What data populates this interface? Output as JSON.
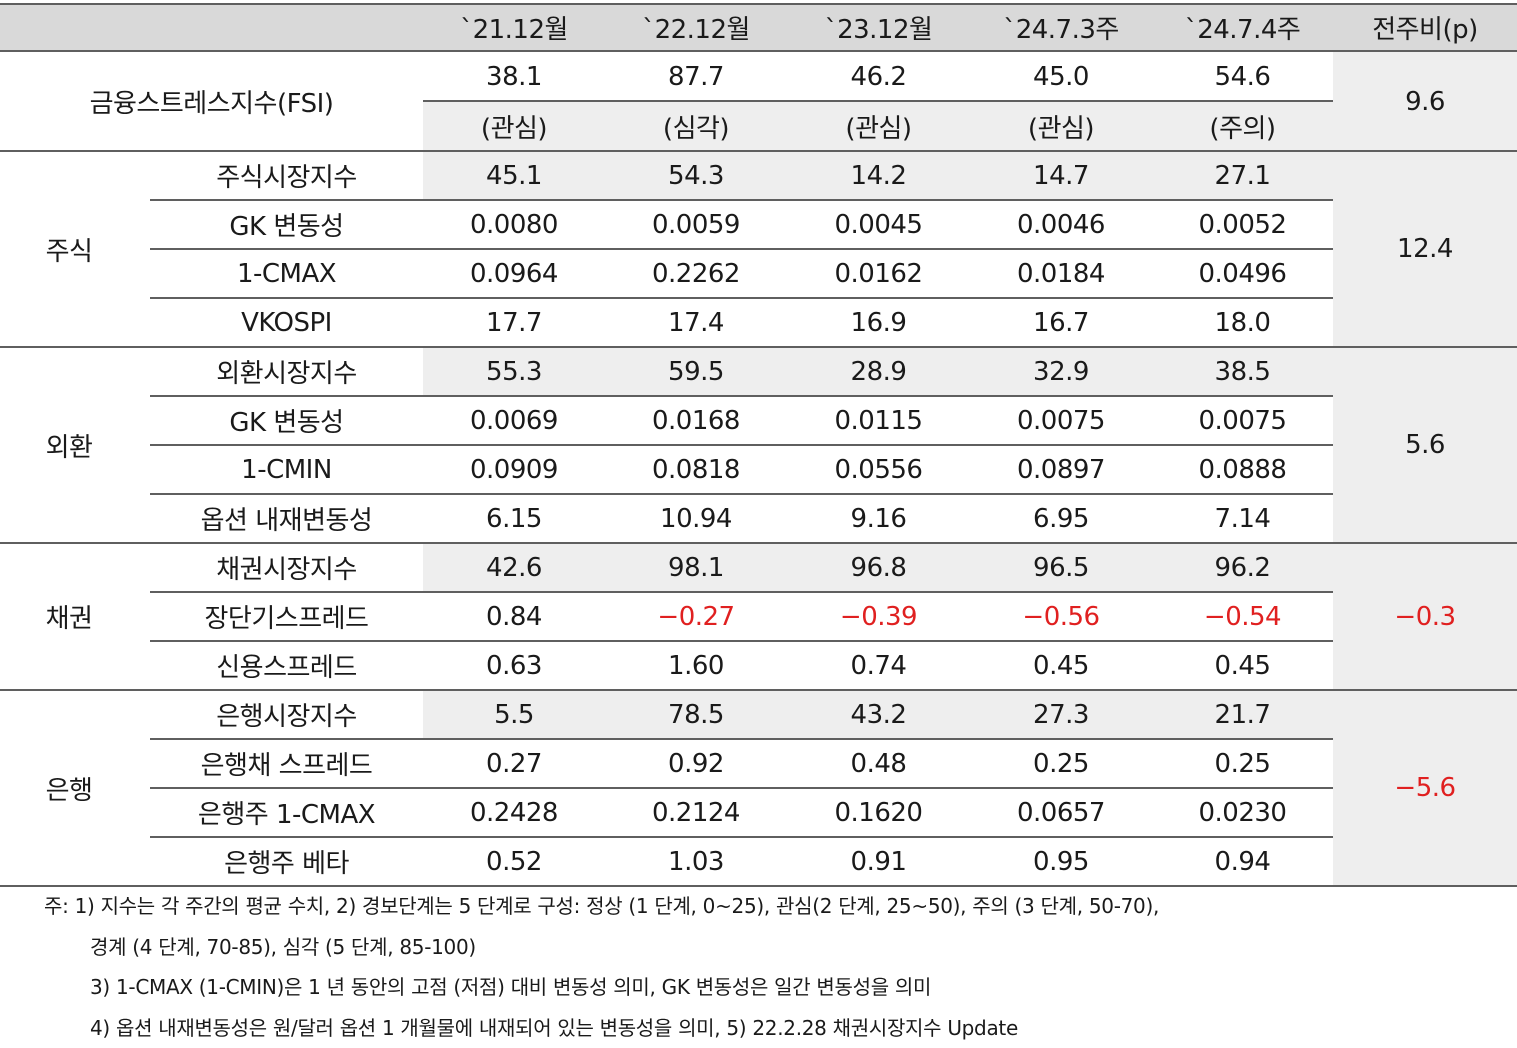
{
  "table": {
    "headers": [
      "`21.12월",
      "`22.12월",
      "`23.12월",
      "`24.7.3주",
      "`24.7.4주",
      "전주비(p)"
    ],
    "fsi": {
      "label": "금융스트레스지수(FSI)",
      "values": [
        "38.1",
        "87.7",
        "46.2",
        "45.0",
        "54.6"
      ],
      "levels": [
        "(관심)",
        "(심각)",
        "(관심)",
        "(관심)",
        "(주의)"
      ],
      "change": "9.6"
    },
    "groups": [
      {
        "name": "주식",
        "change": "12.4",
        "rows": [
          {
            "label": "주식시장지수",
            "values": [
              "45.1",
              "54.3",
              "14.2",
              "14.7",
              "27.1"
            ]
          },
          {
            "label": "GK 변동성",
            "values": [
              "0.0080",
              "0.0059",
              "0.0045",
              "0.0046",
              "0.0052"
            ]
          },
          {
            "label": "1-CMAX",
            "values": [
              "0.0964",
              "0.2262",
              "0.0162",
              "0.0184",
              "0.0496"
            ]
          },
          {
            "label": "VKOSPI",
            "values": [
              "17.7",
              "17.4",
              "16.9",
              "16.7",
              "18.0"
            ]
          }
        ]
      },
      {
        "name": "외환",
        "change": "5.6",
        "rows": [
          {
            "label": "외환시장지수",
            "values": [
              "55.3",
              "59.5",
              "28.9",
              "32.9",
              "38.5"
            ]
          },
          {
            "label": "GK 변동성",
            "values": [
              "0.0069",
              "0.0168",
              "0.0115",
              "0.0075",
              "0.0075"
            ]
          },
          {
            "label": "1-CMIN",
            "values": [
              "0.0909",
              "0.0818",
              "0.0556",
              "0.0897",
              "0.0888"
            ]
          },
          {
            "label": "옵션 내재변동성",
            "values": [
              "6.15",
              "10.94",
              "9.16",
              "6.95",
              "7.14"
            ]
          }
        ]
      },
      {
        "name": "채권",
        "change": "−0.3",
        "rows": [
          {
            "label": "채권시장지수",
            "values": [
              "42.6",
              "98.1",
              "96.8",
              "96.5",
              "96.2"
            ]
          },
          {
            "label": "장단기스프레드",
            "values": [
              "0.84",
              "−0.27",
              "−0.39",
              "−0.56",
              "−0.54"
            ]
          },
          {
            "label": "신용스프레드",
            "values": [
              "0.63",
              "1.60",
              "0.74",
              "0.45",
              "0.45"
            ]
          }
        ]
      },
      {
        "name": "은행",
        "change": "−5.6",
        "rows": [
          {
            "label": "은행시장지수",
            "values": [
              "5.5",
              "78.5",
              "43.2",
              "27.3",
              "21.7"
            ]
          },
          {
            "label": "은행채 스프레드",
            "values": [
              "0.27",
              "0.92",
              "0.48",
              "0.25",
              "0.25"
            ]
          },
          {
            "label": "은행주 1-CMAX",
            "values": [
              "0.2428",
              "0.2124",
              "0.1620",
              "0.0657",
              "0.0230"
            ]
          },
          {
            "label": "은행주 베타",
            "values": [
              "0.52",
              "1.03",
              "0.91",
              "0.95",
              "0.94"
            ]
          }
        ]
      }
    ]
  },
  "notes": [
    "주: 1) 지수는 각 주간의 평균 수치, 2) 경보단계는 5 단계로 구성: 정상 (1 단계, 0~25), 관심(2 단계, 25~50), 주의 (3 단계, 50-70),",
    "경계 (4 단계, 70-85), 심각 (5 단계, 85-100)",
    "3) 1-CMAX (1-CMIN)은 1 년 동안의 고점 (저점) 대비 변동성 의미, GK 변동성은 일간 변동성을 의미",
    "4) 옵션 내재변동성은 원/달러 옵션 1 개월물에 내재되어 있는 변동성을 의미, 5) 22.2.28 채권시장지수 Update"
  ],
  "colors": {
    "header_bg": "#d9d9d9",
    "shade_bg": "#eeeeee",
    "negative": "#e02020",
    "rule": "#5f5f5f"
  }
}
